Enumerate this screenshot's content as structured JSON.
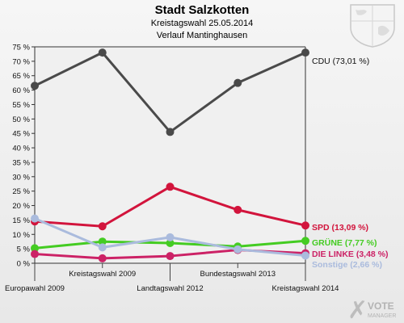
{
  "header": {
    "title": "Stadt Salzkotten",
    "subtitle": "Kreistagswahl 25.05.2014",
    "subtitle2": "Verlauf Mantinghausen"
  },
  "watermark": {
    "brand_line1": "VOTE",
    "brand_line2": "MANAGER"
  },
  "chart_data": {
    "type": "line",
    "title": "Stadt Salzkotten",
    "categories": [
      "Europawahl 2009",
      "Kreistagswahl 2009",
      "Landtagswahl 2012",
      "Bundestagswahl 2013",
      "Kreistagswahl 2014"
    ],
    "ylim": [
      0,
      75
    ],
    "ytick_step": 5,
    "y_tick_labels": [
      "0 %",
      "5 %",
      "10 %",
      "15 %",
      "20 %",
      "25 %",
      "30 %",
      "35 %",
      "40 %",
      "45 %",
      "50 %",
      "55 %",
      "60 %",
      "65 %",
      "70 %",
      "75 %"
    ],
    "grid": false,
    "legend": "end-of-line labels",
    "series": [
      {
        "name": "CDU",
        "label": "CDU (73,01 %)",
        "color": "#4a4a4a",
        "values": [
          61.5,
          73.0,
          45.5,
          62.5,
          73.01
        ]
      },
      {
        "name": "SPD",
        "label": "SPD (13,09 %)",
        "color": "#d2143c",
        "values": [
          14.5,
          12.8,
          26.5,
          18.5,
          13.09
        ]
      },
      {
        "name": "GRÜNE",
        "label": "GRÜNE (7,77 %)",
        "color": "#44cc22",
        "values": [
          5.2,
          7.5,
          7.0,
          5.8,
          7.77
        ]
      },
      {
        "name": "DIE LINKE",
        "label": "DIE LINKE (3,48 %)",
        "color": "#cc2266",
        "values": [
          3.2,
          1.7,
          2.5,
          4.6,
          3.48
        ]
      },
      {
        "name": "Sonstige",
        "label": "Sonstige (2,66 %)",
        "color": "#aabbdd",
        "values": [
          15.5,
          5.5,
          9.0,
          4.8,
          2.66
        ]
      }
    ]
  }
}
